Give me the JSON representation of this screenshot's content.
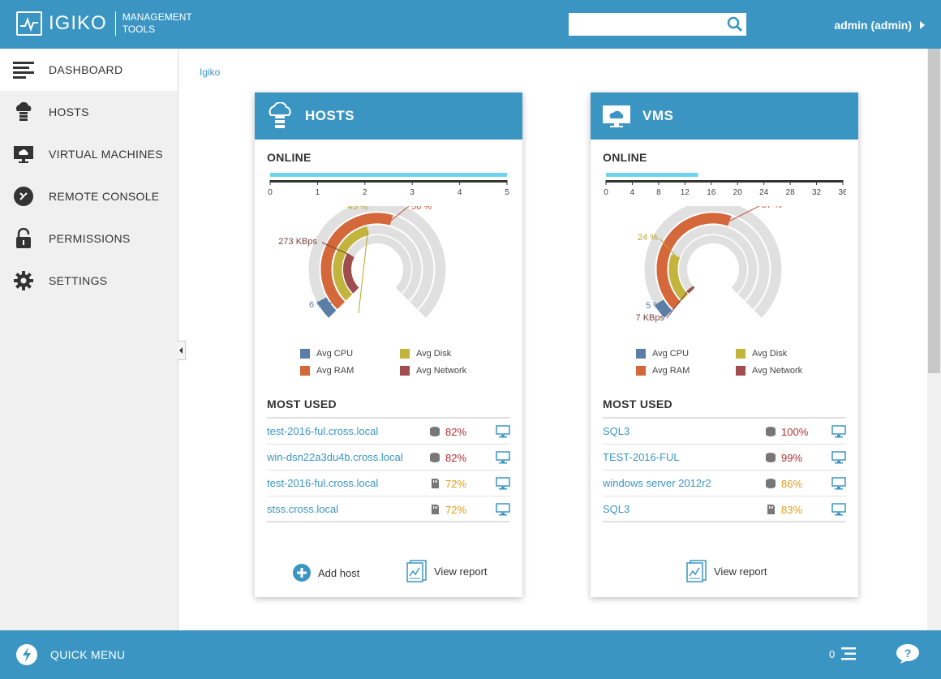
{
  "app": {
    "logo_text": "IGIKO",
    "logo_sub1": "MANAGEMENT",
    "logo_sub2": "TOOLS",
    "user": "admin (admin)"
  },
  "search": {
    "value": "",
    "placeholder": ""
  },
  "sidebar": {
    "items": [
      {
        "label": "DASHBOARD",
        "icon": "menu-icon"
      },
      {
        "label": "HOSTS",
        "icon": "server-cloud-icon"
      },
      {
        "label": "VIRTUAL MACHINES",
        "icon": "monitor-cloud-icon"
      },
      {
        "label": "REMOTE CONSOLE",
        "icon": "remote-console-icon"
      },
      {
        "label": "PERMISSIONS",
        "icon": "lock-icon"
      },
      {
        "label": "SETTINGS",
        "icon": "gear-icon"
      }
    ]
  },
  "breadcrumb": "Igiko",
  "hosts_card": {
    "title": "HOSTS",
    "online_label": "ONLINE",
    "online_value": 5,
    "online_scale": [
      "0",
      "1",
      "2",
      "3",
      "4",
      "5"
    ],
    "labels": {
      "disk": "45 %",
      "ram": "56 %",
      "net": "273 KBps",
      "cpu": "6 %"
    },
    "gauge": {
      "cpu": 0.06,
      "ram": 0.56,
      "disk": 0.45,
      "net": 0.27
    },
    "legend": [
      "Avg CPU",
      "Avg Disk",
      "Avg RAM",
      "Avg Network"
    ],
    "most_used_label": "MOST USED",
    "most_used": [
      {
        "name": "test-2016-ful.cross.local",
        "value": "82%",
        "kind": "disk",
        "color": "#b03030"
      },
      {
        "name": "win-dsn22a3du4b.cross.local",
        "value": "82%",
        "kind": "disk",
        "color": "#b03030"
      },
      {
        "name": "test-2016-ful.cross.local",
        "value": "72%",
        "kind": "memory",
        "color": "#e39b1a"
      },
      {
        "name": "stss.cross.local",
        "value": "72%",
        "kind": "memory",
        "color": "#e39b1a"
      }
    ],
    "add_label": "Add host",
    "report_label": "View report"
  },
  "vms_card": {
    "title": "VMS",
    "online_label": "ONLINE",
    "online_value": 14,
    "online_scale": [
      "0",
      "4",
      "8",
      "12",
      "16",
      "20",
      "24",
      "28",
      "32",
      "36"
    ],
    "labels": {
      "ram": "57 %",
      "disk": "24 %",
      "cpu": "5 %",
      "net": "7 KBps"
    },
    "gauge": {
      "cpu": 0.05,
      "ram": 0.57,
      "disk": 0.24,
      "net": 0.02
    },
    "legend": [
      "Avg CPU",
      "Avg Disk",
      "Avg RAM",
      "Avg Network"
    ],
    "most_used_label": "MOST USED",
    "most_used": [
      {
        "name": "SQL3",
        "value": "100%",
        "kind": "disk",
        "color": "#b03030"
      },
      {
        "name": "TEST-2016-FUL",
        "value": "99%",
        "kind": "disk",
        "color": "#b03030"
      },
      {
        "name": "windows server 2012r2",
        "value": "86%",
        "kind": "disk",
        "color": "#e39b1a"
      },
      {
        "name": "SQL3",
        "value": "83%",
        "kind": "memory",
        "color": "#e39b1a"
      }
    ],
    "report_label": "View report"
  },
  "colors": {
    "cpu": "#5b7ea6",
    "ram": "#d4683a",
    "disk": "#c2b43c",
    "net": "#a04d4d",
    "track": "#e0e0e0",
    "accent": "#3b95c3"
  },
  "bottom": {
    "quick_menu": "QUICK MENU",
    "count": "0"
  }
}
